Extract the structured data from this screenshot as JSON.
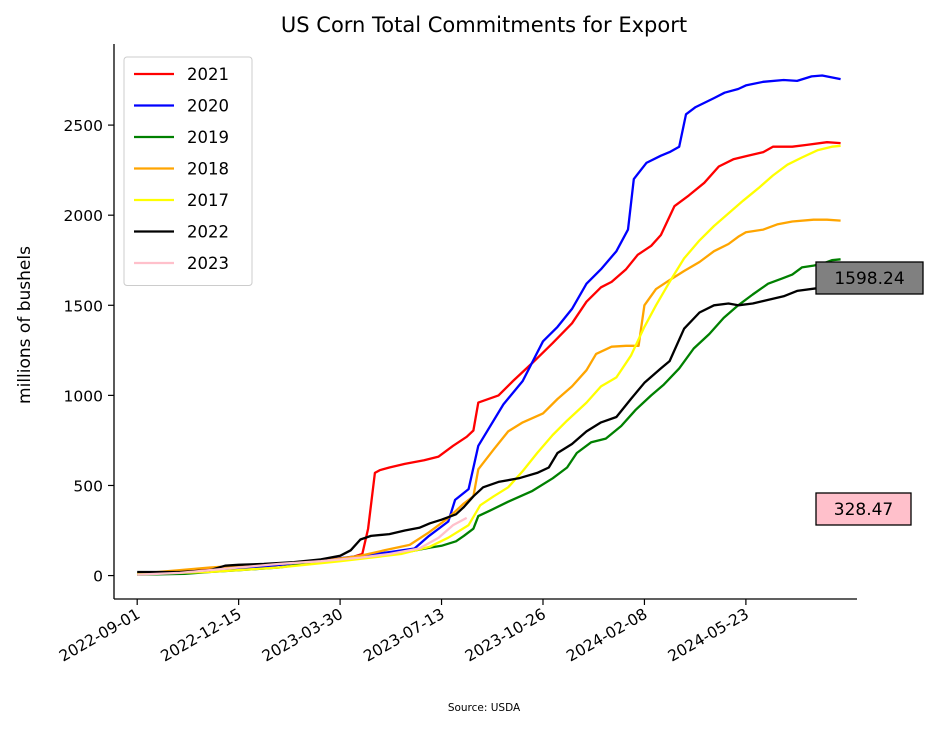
{
  "chart_data": {
    "type": "line",
    "title": "US Corn Total Commitments for Export",
    "xlabel": "",
    "ylabel": "millions of bushels",
    "source": "Source: USDA",
    "x_start": "2022-09-01",
    "x_end": "2024-08-29",
    "xlim": [
      "2022-08-08",
      "2024-09-15"
    ],
    "ylim": [
      -130,
      2950
    ],
    "x_ticks": [
      "2022-09-01",
      "2022-12-15",
      "2023-03-30",
      "2023-07-13",
      "2023-10-26",
      "2024-02-08",
      "2024-05-23"
    ],
    "y_ticks": [
      0,
      500,
      1000,
      1500,
      2000,
      2500
    ],
    "grid": false,
    "legend_position": "top-left",
    "series": [
      {
        "name": "2021",
        "color": "#ff0000",
        "points": [
          [
            "2022-09-01",
            10
          ],
          [
            "2022-10-15",
            25
          ],
          [
            "2022-12-15",
            40
          ],
          [
            "2023-01-26",
            60
          ],
          [
            "2023-03-15",
            90
          ],
          [
            "2023-04-10",
            100
          ],
          [
            "2023-04-22",
            120
          ],
          [
            "2023-04-28",
            260
          ],
          [
            "2023-05-05",
            570
          ],
          [
            "2023-05-10",
            585
          ],
          [
            "2023-05-20",
            600
          ],
          [
            "2023-06-05",
            620
          ],
          [
            "2023-06-25",
            640
          ],
          [
            "2023-07-10",
            660
          ],
          [
            "2023-07-25",
            720
          ],
          [
            "2023-08-08",
            770
          ],
          [
            "2023-08-15",
            805
          ],
          [
            "2023-08-20",
            960
          ],
          [
            "2023-09-10",
            1000
          ],
          [
            "2023-09-25",
            1080
          ],
          [
            "2023-10-15",
            1180
          ],
          [
            "2023-11-05",
            1290
          ],
          [
            "2023-11-25",
            1400
          ],
          [
            "2023-12-10",
            1520
          ],
          [
            "2023-12-25",
            1600
          ],
          [
            "2024-01-05",
            1630
          ],
          [
            "2024-01-20",
            1700
          ],
          [
            "2024-02-01",
            1780
          ],
          [
            "2024-02-15",
            1830
          ],
          [
            "2024-02-25",
            1890
          ],
          [
            "2024-03-10",
            2050
          ],
          [
            "2024-03-25",
            2110
          ],
          [
            "2024-04-10",
            2180
          ],
          [
            "2024-04-25",
            2270
          ],
          [
            "2024-05-10",
            2310
          ],
          [
            "2024-05-25",
            2330
          ],
          [
            "2024-06-10",
            2350
          ],
          [
            "2024-06-20",
            2380
          ],
          [
            "2024-07-10",
            2380
          ],
          [
            "2024-07-25",
            2390
          ],
          [
            "2024-08-15",
            2405
          ],
          [
            "2024-08-29",
            2400
          ]
        ]
      },
      {
        "name": "2020",
        "color": "#0000ff",
        "points": [
          [
            "2022-09-01",
            10
          ],
          [
            "2022-11-15",
            25
          ],
          [
            "2023-01-26",
            60
          ],
          [
            "2023-03-20",
            90
          ],
          [
            "2023-04-20",
            110
          ],
          [
            "2023-05-20",
            130
          ],
          [
            "2023-06-15",
            150
          ],
          [
            "2023-06-30",
            220
          ],
          [
            "2023-07-20",
            300
          ],
          [
            "2023-07-27",
            420
          ],
          [
            "2023-08-10",
            480
          ],
          [
            "2023-08-20",
            720
          ],
          [
            "2023-09-15",
            950
          ],
          [
            "2023-10-05",
            1080
          ],
          [
            "2023-10-26",
            1300
          ],
          [
            "2023-11-10",
            1380
          ],
          [
            "2023-11-25",
            1480
          ],
          [
            "2023-12-10",
            1620
          ],
          [
            "2023-12-25",
            1700
          ],
          [
            "2024-01-10",
            1800
          ],
          [
            "2024-01-22",
            1920
          ],
          [
            "2024-01-28",
            2200
          ],
          [
            "2024-02-10",
            2290
          ],
          [
            "2024-02-25",
            2330
          ],
          [
            "2024-03-05",
            2350
          ],
          [
            "2024-03-15",
            2380
          ],
          [
            "2024-03-22",
            2560
          ],
          [
            "2024-04-01",
            2600
          ],
          [
            "2024-04-20",
            2650
          ],
          [
            "2024-05-01",
            2680
          ],
          [
            "2024-05-15",
            2700
          ],
          [
            "2024-05-23",
            2720
          ],
          [
            "2024-06-10",
            2740
          ],
          [
            "2024-07-01",
            2750
          ],
          [
            "2024-07-15",
            2745
          ],
          [
            "2024-07-30",
            2770
          ],
          [
            "2024-08-10",
            2775
          ],
          [
            "2024-08-29",
            2755
          ]
        ]
      },
      {
        "name": "2019",
        "color": "#008000",
        "points": [
          [
            "2022-09-01",
            5
          ],
          [
            "2022-10-20",
            10
          ],
          [
            "2022-11-15",
            20
          ],
          [
            "2022-12-15",
            30
          ],
          [
            "2023-01-26",
            45
          ],
          [
            "2023-03-01",
            70
          ],
          [
            "2023-03-30",
            85
          ],
          [
            "2023-05-01",
            105
          ],
          [
            "2023-06-01",
            125
          ],
          [
            "2023-07-01",
            155
          ],
          [
            "2023-07-13",
            165
          ],
          [
            "2023-07-28",
            190
          ],
          [
            "2023-08-05",
            220
          ],
          [
            "2023-08-15",
            260
          ],
          [
            "2023-08-20",
            330
          ],
          [
            "2023-09-01",
            360
          ],
          [
            "2023-09-20",
            410
          ],
          [
            "2023-10-15",
            470
          ],
          [
            "2023-11-05",
            540
          ],
          [
            "2023-11-20",
            600
          ],
          [
            "2023-11-30",
            680
          ],
          [
            "2023-12-15",
            740
          ],
          [
            "2023-12-30",
            760
          ],
          [
            "2024-01-15",
            830
          ],
          [
            "2024-01-30",
            920
          ],
          [
            "2024-02-15",
            1000
          ],
          [
            "2024-02-28",
            1060
          ],
          [
            "2024-03-15",
            1150
          ],
          [
            "2024-03-30",
            1260
          ],
          [
            "2024-04-15",
            1340
          ],
          [
            "2024-04-30",
            1430
          ],
          [
            "2024-05-15",
            1500
          ],
          [
            "2024-05-30",
            1560
          ],
          [
            "2024-06-15",
            1620
          ],
          [
            "2024-06-30",
            1650
          ],
          [
            "2024-07-10",
            1670
          ],
          [
            "2024-07-20",
            1710
          ],
          [
            "2024-08-01",
            1720
          ],
          [
            "2024-08-10",
            1730
          ],
          [
            "2024-08-20",
            1750
          ],
          [
            "2024-08-29",
            1755
          ]
        ]
      },
      {
        "name": "2018",
        "color": "#ffa500",
        "points": [
          [
            "2022-09-01",
            10
          ],
          [
            "2022-10-15",
            30
          ],
          [
            "2022-11-15",
            45
          ],
          [
            "2022-12-15",
            55
          ],
          [
            "2023-01-26",
            65
          ],
          [
            "2023-03-10",
            80
          ],
          [
            "2023-04-20",
            110
          ],
          [
            "2023-05-15",
            140
          ],
          [
            "2023-06-10",
            170
          ],
          [
            "2023-06-30",
            240
          ],
          [
            "2023-07-20",
            320
          ],
          [
            "2023-08-05",
            400
          ],
          [
            "2023-08-15",
            440
          ],
          [
            "2023-08-20",
            590
          ],
          [
            "2023-09-05",
            700
          ],
          [
            "2023-09-20",
            800
          ],
          [
            "2023-10-05",
            850
          ],
          [
            "2023-10-26",
            900
          ],
          [
            "2023-11-10",
            980
          ],
          [
            "2023-11-25",
            1050
          ],
          [
            "2023-12-10",
            1140
          ],
          [
            "2023-12-20",
            1230
          ],
          [
            "2024-01-05",
            1270
          ],
          [
            "2024-01-20",
            1275
          ],
          [
            "2024-02-02",
            1275
          ],
          [
            "2024-02-08",
            1500
          ],
          [
            "2024-02-20",
            1590
          ],
          [
            "2024-03-05",
            1640
          ],
          [
            "2024-03-20",
            1690
          ],
          [
            "2024-04-05",
            1740
          ],
          [
            "2024-04-20",
            1800
          ],
          [
            "2024-05-05",
            1840
          ],
          [
            "2024-05-15",
            1880
          ],
          [
            "2024-05-23",
            1905
          ],
          [
            "2024-06-10",
            1920
          ],
          [
            "2024-06-25",
            1950
          ],
          [
            "2024-07-10",
            1965
          ],
          [
            "2024-08-01",
            1975
          ],
          [
            "2024-08-15",
            1975
          ],
          [
            "2024-08-29",
            1970
          ]
        ]
      },
      {
        "name": "2017",
        "color": "#ffff00",
        "points": [
          [
            "2022-09-01",
            10
          ],
          [
            "2022-11-15",
            20
          ],
          [
            "2023-01-26",
            45
          ],
          [
            "2023-03-30",
            80
          ],
          [
            "2023-05-01",
            100
          ],
          [
            "2023-06-01",
            120
          ],
          [
            "2023-07-01",
            160
          ],
          [
            "2023-07-20",
            210
          ],
          [
            "2023-08-10",
            280
          ],
          [
            "2023-08-22",
            390
          ],
          [
            "2023-09-05",
            440
          ],
          [
            "2023-09-20",
            490
          ],
          [
            "2023-10-05",
            580
          ],
          [
            "2023-10-20",
            680
          ],
          [
            "2023-11-05",
            780
          ],
          [
            "2023-11-20",
            860
          ],
          [
            "2023-12-10",
            960
          ],
          [
            "2023-12-25",
            1050
          ],
          [
            "2024-01-10",
            1100
          ],
          [
            "2024-01-25",
            1220
          ],
          [
            "2024-02-08",
            1380
          ],
          [
            "2024-02-20",
            1500
          ],
          [
            "2024-03-05",
            1630
          ],
          [
            "2024-03-20",
            1760
          ],
          [
            "2024-04-05",
            1860
          ],
          [
            "2024-04-20",
            1940
          ],
          [
            "2024-05-05",
            2010
          ],
          [
            "2024-05-20",
            2080
          ],
          [
            "2024-06-05",
            2150
          ],
          [
            "2024-06-20",
            2220
          ],
          [
            "2024-07-05",
            2280
          ],
          [
            "2024-07-20",
            2320
          ],
          [
            "2024-08-05",
            2360
          ],
          [
            "2024-08-20",
            2380
          ],
          [
            "2024-08-29",
            2385
          ]
        ]
      },
      {
        "name": "2022",
        "color": "#000000",
        "points": [
          [
            "2022-09-01",
            20
          ],
          [
            "2022-10-15",
            20
          ],
          [
            "2022-11-15",
            30
          ],
          [
            "2022-12-01",
            55
          ],
          [
            "2022-12-15",
            60
          ],
          [
            "2023-01-10",
            65
          ],
          [
            "2023-02-10",
            75
          ],
          [
            "2023-03-10",
            90
          ],
          [
            "2023-03-30",
            110
          ],
          [
            "2023-04-10",
            140
          ],
          [
            "2023-04-20",
            200
          ],
          [
            "2023-05-01",
            220
          ],
          [
            "2023-05-20",
            230
          ],
          [
            "2023-06-05",
            250
          ],
          [
            "2023-06-20",
            265
          ],
          [
            "2023-07-01",
            290
          ],
          [
            "2023-07-13",
            310
          ],
          [
            "2023-07-28",
            340
          ],
          [
            "2023-08-05",
            380
          ],
          [
            "2023-08-15",
            440
          ],
          [
            "2023-08-25",
            490
          ],
          [
            "2023-09-10",
            520
          ],
          [
            "2023-10-01",
            540
          ],
          [
            "2023-10-20",
            570
          ],
          [
            "2023-11-01",
            600
          ],
          [
            "2023-11-10",
            680
          ],
          [
            "2023-11-25",
            730
          ],
          [
            "2023-12-10",
            800
          ],
          [
            "2023-12-25",
            850
          ],
          [
            "2024-01-10",
            880
          ],
          [
            "2024-01-25",
            980
          ],
          [
            "2024-02-08",
            1070
          ],
          [
            "2024-02-25",
            1150
          ],
          [
            "2024-03-05",
            1190
          ],
          [
            "2024-03-20",
            1370
          ],
          [
            "2024-04-05",
            1460
          ],
          [
            "2024-04-20",
            1500
          ],
          [
            "2024-05-05",
            1510
          ],
          [
            "2024-05-15",
            1500
          ],
          [
            "2024-05-30",
            1510
          ],
          [
            "2024-06-15",
            1530
          ],
          [
            "2024-07-01",
            1550
          ],
          [
            "2024-07-15",
            1580
          ],
          [
            "2024-08-05",
            1595
          ],
          [
            "2024-08-29",
            1598.24
          ]
        ]
      },
      {
        "name": "2023",
        "color": "#ffc0cb",
        "points": [
          [
            "2022-09-01",
            5
          ],
          [
            "2022-10-15",
            15
          ],
          [
            "2022-11-15",
            30
          ],
          [
            "2022-12-15",
            45
          ],
          [
            "2023-01-26",
            65
          ],
          [
            "2023-03-10",
            80
          ],
          [
            "2023-04-20",
            100
          ],
          [
            "2023-05-20",
            120
          ],
          [
            "2023-06-20",
            150
          ],
          [
            "2023-07-10",
            210
          ],
          [
            "2023-07-25",
            280
          ],
          [
            "2023-08-08",
            320
          ]
        ]
      }
    ],
    "annotations": [
      {
        "text": "1598.24",
        "value": 1598.24,
        "color": "#808080"
      },
      {
        "text": "328.47",
        "value": 328.47,
        "color": "#ffc0cb"
      }
    ]
  }
}
